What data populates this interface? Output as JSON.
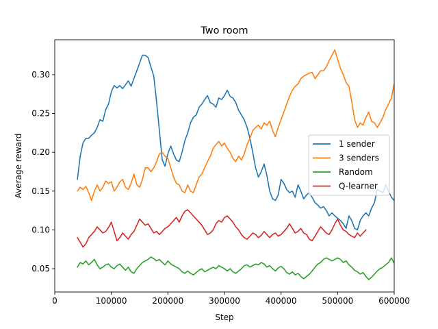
{
  "chart_data": {
    "type": "line",
    "title": "Two room",
    "xlabel": "Step",
    "ylabel": "Average reward",
    "xlim": [
      0,
      600000
    ],
    "ylim": [
      0.02,
      0.345
    ],
    "xticks": [
      0,
      100000,
      200000,
      300000,
      400000,
      500000,
      600000
    ],
    "xtick_labels": [
      "0",
      "100000",
      "200000",
      "300000",
      "400000",
      "500000",
      "600000"
    ],
    "yticks": [
      0.05,
      0.1,
      0.15,
      0.2,
      0.25,
      0.3
    ],
    "ytick_labels": [
      "0.05",
      "0.10",
      "0.15",
      "0.20",
      "0.25",
      "0.30"
    ],
    "grid": false,
    "legend_position": "center-right",
    "series": [
      {
        "name": "1 sender",
        "color": "#1f77b4",
        "x": [
          40000,
          45000,
          50000,
          55000,
          60000,
          65000,
          70000,
          75000,
          80000,
          85000,
          90000,
          95000,
          100000,
          105000,
          110000,
          115000,
          120000,
          125000,
          130000,
          135000,
          140000,
          145000,
          150000,
          155000,
          160000,
          165000,
          170000,
          175000,
          180000,
          185000,
          190000,
          195000,
          200000,
          205000,
          210000,
          215000,
          220000,
          225000,
          230000,
          235000,
          240000,
          245000,
          250000,
          255000,
          260000,
          265000,
          270000,
          275000,
          280000,
          285000,
          290000,
          295000,
          300000,
          305000,
          310000,
          315000,
          320000,
          325000,
          330000,
          335000,
          340000,
          345000,
          350000,
          355000,
          360000,
          365000,
          370000,
          375000,
          380000,
          385000,
          390000,
          395000,
          400000,
          405000,
          410000,
          415000,
          420000,
          425000,
          430000,
          435000,
          440000,
          445000,
          450000,
          455000,
          460000,
          465000,
          470000,
          475000,
          480000,
          485000,
          490000,
          495000,
          500000,
          505000,
          510000,
          515000,
          520000,
          525000,
          530000,
          535000,
          540000,
          545000,
          550000,
          555000,
          560000,
          565000,
          570000,
          575000,
          580000,
          585000,
          590000,
          595000,
          600000
        ],
        "values": [
          0.165,
          0.195,
          0.212,
          0.218,
          0.218,
          0.222,
          0.225,
          0.232,
          0.242,
          0.24,
          0.255,
          0.262,
          0.278,
          0.286,
          0.283,
          0.286,
          0.282,
          0.287,
          0.292,
          0.285,
          0.295,
          0.305,
          0.315,
          0.325,
          0.325,
          0.322,
          0.31,
          0.298,
          0.265,
          0.228,
          0.19,
          0.182,
          0.198,
          0.208,
          0.198,
          0.19,
          0.188,
          0.2,
          0.215,
          0.225,
          0.238,
          0.245,
          0.248,
          0.258,
          0.262,
          0.268,
          0.273,
          0.264,
          0.262,
          0.258,
          0.27,
          0.268,
          0.273,
          0.28,
          0.272,
          0.27,
          0.264,
          0.254,
          0.248,
          0.242,
          0.232,
          0.218,
          0.2,
          0.18,
          0.168,
          0.175,
          0.185,
          0.17,
          0.15,
          0.14,
          0.138,
          0.145,
          0.165,
          0.16,
          0.152,
          0.148,
          0.15,
          0.142,
          0.158,
          0.15,
          0.14,
          0.145,
          0.148,
          0.142,
          0.135,
          0.132,
          0.128,
          0.13,
          0.125,
          0.118,
          0.122,
          0.118,
          0.115,
          0.112,
          0.108,
          0.102,
          0.118,
          0.112,
          0.102,
          0.1,
          0.112,
          0.118,
          0.122,
          0.118,
          0.128,
          0.135,
          0.152,
          0.15,
          0.148,
          0.158,
          0.15,
          0.142,
          0.138
        ]
      },
      {
        "name": "3 senders",
        "color": "#ff7f0e",
        "x": [
          40000,
          45000,
          50000,
          55000,
          60000,
          65000,
          70000,
          75000,
          80000,
          85000,
          90000,
          95000,
          100000,
          105000,
          110000,
          115000,
          120000,
          125000,
          130000,
          135000,
          140000,
          145000,
          150000,
          155000,
          160000,
          165000,
          170000,
          175000,
          180000,
          185000,
          190000,
          195000,
          200000,
          205000,
          210000,
          215000,
          220000,
          225000,
          230000,
          235000,
          240000,
          245000,
          250000,
          255000,
          260000,
          265000,
          270000,
          275000,
          280000,
          285000,
          290000,
          295000,
          300000,
          305000,
          310000,
          315000,
          320000,
          325000,
          330000,
          335000,
          340000,
          345000,
          350000,
          355000,
          360000,
          365000,
          370000,
          375000,
          380000,
          385000,
          390000,
          395000,
          400000,
          405000,
          410000,
          415000,
          420000,
          425000,
          430000,
          435000,
          440000,
          445000,
          450000,
          455000,
          460000,
          465000,
          470000,
          475000,
          480000,
          485000,
          490000,
          495000,
          500000,
          505000,
          510000,
          515000,
          520000,
          525000,
          530000,
          535000,
          540000,
          545000,
          550000,
          555000,
          560000,
          565000,
          570000,
          575000,
          580000,
          585000,
          590000,
          595000,
          600000
        ],
        "values": [
          0.15,
          0.155,
          0.152,
          0.156,
          0.148,
          0.138,
          0.15,
          0.158,
          0.15,
          0.155,
          0.163,
          0.16,
          0.162,
          0.15,
          0.155,
          0.162,
          0.165,
          0.155,
          0.152,
          0.16,
          0.172,
          0.158,
          0.155,
          0.165,
          0.18,
          0.18,
          0.175,
          0.18,
          0.188,
          0.198,
          0.2,
          0.195,
          0.192,
          0.18,
          0.168,
          0.16,
          0.158,
          0.15,
          0.148,
          0.158,
          0.15,
          0.148,
          0.158,
          0.168,
          0.172,
          0.18,
          0.188,
          0.195,
          0.205,
          0.21,
          0.214,
          0.208,
          0.212,
          0.205,
          0.2,
          0.192,
          0.188,
          0.195,
          0.19,
          0.198,
          0.21,
          0.218,
          0.228,
          0.232,
          0.235,
          0.23,
          0.238,
          0.235,
          0.24,
          0.228,
          0.22,
          0.232,
          0.242,
          0.252,
          0.262,
          0.272,
          0.28,
          0.285,
          0.288,
          0.295,
          0.298,
          0.3,
          0.302,
          0.303,
          0.295,
          0.3,
          0.305,
          0.305,
          0.31,
          0.318,
          0.325,
          0.332,
          0.32,
          0.308,
          0.3,
          0.29,
          0.285,
          0.265,
          0.242,
          0.232,
          0.238,
          0.235,
          0.245,
          0.252,
          0.24,
          0.238,
          0.232,
          0.238,
          0.245,
          0.255,
          0.262,
          0.27,
          0.288
        ]
      },
      {
        "name": "Random",
        "color": "#2ca02c",
        "x": [
          40000,
          45000,
          50000,
          55000,
          60000,
          65000,
          70000,
          75000,
          80000,
          85000,
          90000,
          95000,
          100000,
          105000,
          110000,
          115000,
          120000,
          125000,
          130000,
          135000,
          140000,
          145000,
          150000,
          155000,
          160000,
          165000,
          170000,
          175000,
          180000,
          185000,
          190000,
          195000,
          200000,
          205000,
          210000,
          215000,
          220000,
          225000,
          230000,
          235000,
          240000,
          245000,
          250000,
          255000,
          260000,
          265000,
          270000,
          275000,
          280000,
          285000,
          290000,
          295000,
          300000,
          305000,
          310000,
          315000,
          320000,
          325000,
          330000,
          335000,
          340000,
          345000,
          350000,
          355000,
          360000,
          365000,
          370000,
          375000,
          380000,
          385000,
          390000,
          395000,
          400000,
          405000,
          410000,
          415000,
          420000,
          425000,
          430000,
          435000,
          440000,
          445000,
          450000,
          455000,
          460000,
          465000,
          470000,
          475000,
          480000,
          485000,
          490000,
          495000,
          500000,
          505000,
          510000,
          515000,
          520000,
          525000,
          530000,
          535000,
          540000,
          545000,
          550000,
          555000,
          560000,
          565000,
          570000,
          575000,
          580000,
          585000,
          590000,
          595000,
          600000
        ],
        "values": [
          0.052,
          0.058,
          0.056,
          0.06,
          0.055,
          0.058,
          0.062,
          0.055,
          0.05,
          0.052,
          0.055,
          0.056,
          0.052,
          0.05,
          0.054,
          0.056,
          0.052,
          0.048,
          0.052,
          0.046,
          0.044,
          0.05,
          0.054,
          0.058,
          0.06,
          0.062,
          0.065,
          0.063,
          0.06,
          0.062,
          0.058,
          0.055,
          0.06,
          0.056,
          0.054,
          0.052,
          0.05,
          0.046,
          0.044,
          0.047,
          0.044,
          0.042,
          0.045,
          0.048,
          0.05,
          0.046,
          0.048,
          0.05,
          0.052,
          0.05,
          0.054,
          0.052,
          0.05,
          0.047,
          0.05,
          0.046,
          0.044,
          0.047,
          0.05,
          0.054,
          0.055,
          0.052,
          0.054,
          0.056,
          0.055,
          0.058,
          0.056,
          0.052,
          0.054,
          0.05,
          0.047,
          0.051,
          0.053,
          0.05,
          0.045,
          0.043,
          0.046,
          0.042,
          0.044,
          0.04,
          0.037,
          0.04,
          0.043,
          0.047,
          0.052,
          0.056,
          0.058,
          0.062,
          0.064,
          0.062,
          0.06,
          0.062,
          0.064,
          0.062,
          0.058,
          0.06,
          0.055,
          0.052,
          0.048,
          0.046,
          0.043,
          0.045,
          0.04,
          0.036,
          0.039,
          0.043,
          0.047,
          0.05,
          0.052,
          0.055,
          0.058,
          0.064,
          0.057
        ]
      },
      {
        "name": "Q-learner",
        "color": "#d62728",
        "x": [
          40000,
          45000,
          50000,
          55000,
          60000,
          65000,
          70000,
          75000,
          80000,
          85000,
          90000,
          95000,
          100000,
          105000,
          110000,
          115000,
          120000,
          125000,
          130000,
          135000,
          140000,
          145000,
          150000,
          155000,
          160000,
          165000,
          170000,
          175000,
          180000,
          185000,
          190000,
          195000,
          200000,
          205000,
          210000,
          215000,
          220000,
          225000,
          230000,
          235000,
          240000,
          245000,
          250000,
          255000,
          260000,
          265000,
          270000,
          275000,
          280000,
          285000,
          290000,
          295000,
          300000,
          305000,
          310000,
          315000,
          320000,
          325000,
          330000,
          335000,
          340000,
          345000,
          350000,
          355000,
          360000,
          365000,
          370000,
          375000,
          380000,
          385000,
          390000,
          395000,
          400000,
          405000,
          410000,
          415000,
          420000,
          425000,
          430000,
          435000,
          440000,
          445000,
          450000,
          455000,
          460000,
          465000,
          470000,
          475000,
          480000,
          485000,
          490000,
          495000,
          500000,
          505000,
          510000,
          515000,
          520000,
          525000,
          530000,
          535000,
          540000,
          545000,
          550000
        ],
        "values": [
          0.09,
          0.084,
          0.078,
          0.082,
          0.09,
          0.094,
          0.098,
          0.104,
          0.1,
          0.096,
          0.098,
          0.103,
          0.11,
          0.098,
          0.086,
          0.09,
          0.096,
          0.092,
          0.088,
          0.094,
          0.098,
          0.106,
          0.114,
          0.11,
          0.106,
          0.108,
          0.102,
          0.096,
          0.098,
          0.094,
          0.098,
          0.102,
          0.104,
          0.108,
          0.112,
          0.116,
          0.11,
          0.118,
          0.124,
          0.126,
          0.122,
          0.118,
          0.114,
          0.11,
          0.106,
          0.1,
          0.094,
          0.096,
          0.1,
          0.108,
          0.112,
          0.11,
          0.116,
          0.118,
          0.114,
          0.11,
          0.104,
          0.1,
          0.094,
          0.09,
          0.088,
          0.092,
          0.096,
          0.094,
          0.09,
          0.093,
          0.098,
          0.094,
          0.09,
          0.094,
          0.096,
          0.092,
          0.094,
          0.098,
          0.102,
          0.108,
          0.102,
          0.096,
          0.098,
          0.102,
          0.096,
          0.094,
          0.088,
          0.086,
          0.092,
          0.098,
          0.104,
          0.1,
          0.096,
          0.094,
          0.1,
          0.108,
          0.114,
          0.106,
          0.1,
          0.098,
          0.094,
          0.092,
          0.09,
          0.096,
          0.092,
          0.096,
          0.1
        ]
      }
    ]
  }
}
